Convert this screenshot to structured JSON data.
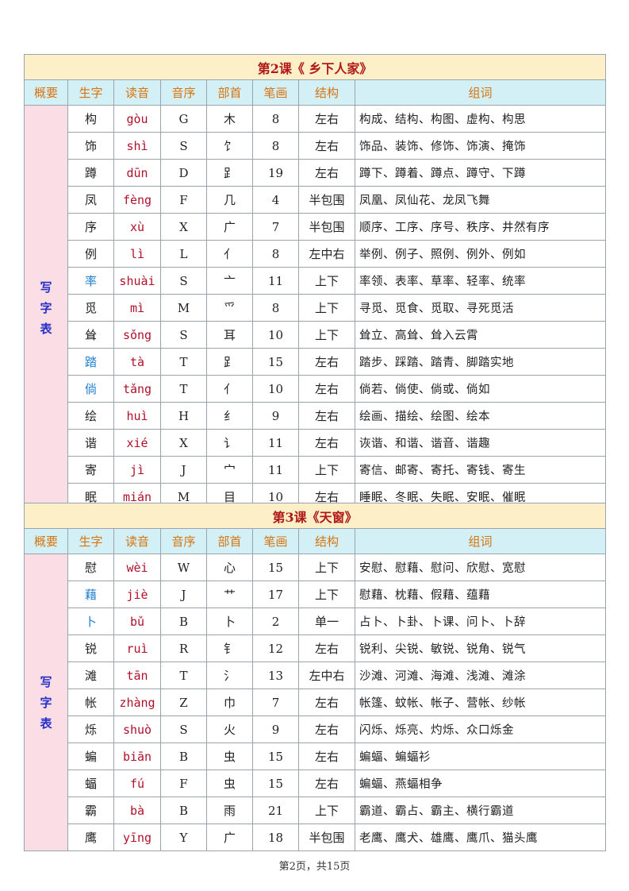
{
  "headers": [
    "概要",
    "生字",
    "读音",
    "音序",
    "部首",
    "笔画",
    "结构",
    "组词"
  ],
  "side_label": "写字表",
  "colors": {
    "title_bg": "#fdf0c8",
    "title_text": "#b01818",
    "header_bg": "#d3f0f6",
    "header_text": "#d8730e",
    "side_bg": "#fbdde6",
    "side_text": "#2630c8",
    "pinyin": "#b0102a",
    "highlight_char": "#1e7fd0"
  },
  "lessons": [
    {
      "title": "第2课《 乡下人家》",
      "rows": [
        {
          "char": "构",
          "pinyin": "gòu",
          "initial": "G",
          "radical": "木",
          "strokes": "8",
          "structure": "左右",
          "words": "构成、结构、构图、虚构、构思"
        },
        {
          "char": "饰",
          "pinyin": "shì",
          "initial": "S",
          "radical": "饣",
          "strokes": "8",
          "structure": "左右",
          "words": "饰品、装饰、修饰、饰演、掩饰"
        },
        {
          "char": "蹲",
          "pinyin": "dūn",
          "initial": "D",
          "radical": "⻊",
          "strokes": "19",
          "structure": "左右",
          "words": "蹲下、蹲着、蹲点、蹲守、下蹲"
        },
        {
          "char": "凤",
          "pinyin": "fèng",
          "initial": "F",
          "radical": "几",
          "strokes": "4",
          "structure": "半包围",
          "words": "凤凰、凤仙花、龙凤飞舞"
        },
        {
          "char": "序",
          "pinyin": "xù",
          "initial": "X",
          "radical": "广",
          "strokes": "7",
          "structure": "半包围",
          "words": "顺序、工序、序号、秩序、井然有序"
        },
        {
          "char": "例",
          "pinyin": "lì",
          "initial": "L",
          "radical": "亻",
          "strokes": "8",
          "structure": "左中右",
          "words": "举例、例子、照例、例外、例如"
        },
        {
          "char": "率",
          "pinyin": "shuài",
          "initial": "S",
          "radical": "亠",
          "strokes": "11",
          "structure": "上下",
          "words": "率领、表率、草率、轻率、统率",
          "highlight": true
        },
        {
          "char": "觅",
          "pinyin": "mì",
          "initial": "M",
          "radical": "爫",
          "strokes": "8",
          "structure": "上下",
          "words": "寻觅、觅食、觅取、寻死觅活"
        },
        {
          "char": "耸",
          "pinyin": "sǒng",
          "initial": "S",
          "radical": "耳",
          "strokes": "10",
          "structure": "上下",
          "words": "耸立、高耸、耸入云霄"
        },
        {
          "char": "踏",
          "pinyin": "tà",
          "initial": "T",
          "radical": "⻊",
          "strokes": "15",
          "structure": "左右",
          "words": "踏步、踩踏、踏青、脚踏实地",
          "highlight": true
        },
        {
          "char": "倘",
          "pinyin": "tǎng",
          "initial": "T",
          "radical": "亻",
          "strokes": "10",
          "structure": "左右",
          "words": "倘若、倘使、倘或、倘如",
          "highlight": true
        },
        {
          "char": "绘",
          "pinyin": "huì",
          "initial": "H",
          "radical": "纟",
          "strokes": "9",
          "structure": "左右",
          "words": "绘画、描绘、绘图、绘本"
        },
        {
          "char": "谐",
          "pinyin": "xié",
          "initial": "X",
          "radical": "讠",
          "strokes": "11",
          "structure": "左右",
          "words": "诙谐、和谐、谐音、谐趣"
        },
        {
          "char": "寄",
          "pinyin": "jì",
          "initial": "J",
          "radical": "宀",
          "strokes": "11",
          "structure": "上下",
          "words": "寄信、邮寄、寄托、寄钱、寄生"
        },
        {
          "char": "眠",
          "pinyin": "mián",
          "initial": "M",
          "radical": "目",
          "strokes": "10",
          "structure": "左右",
          "words": "睡眠、冬眠、失眠、安眠、催眠"
        }
      ]
    },
    {
      "title": "第3课《天窗》",
      "rows": [
        {
          "char": "慰",
          "pinyin": "wèi",
          "initial": "W",
          "radical": "心",
          "strokes": "15",
          "structure": "上下",
          "words": "安慰、慰藉、慰问、欣慰、宽慰"
        },
        {
          "char": "藉",
          "pinyin": "jiè",
          "initial": "J",
          "radical": "艹",
          "strokes": "17",
          "structure": "上下",
          "words": "慰藉、枕藉、假藉、蕴藉",
          "highlight": true
        },
        {
          "char": "卜",
          "pinyin": "bǔ",
          "initial": "B",
          "radical": "卜",
          "strokes": "2",
          "structure": "单一",
          "words": "占卜、卜卦、卜课、问卜、卜辞",
          "highlight": true
        },
        {
          "char": "锐",
          "pinyin": "ruì",
          "initial": "R",
          "radical": "钅",
          "strokes": "12",
          "structure": "左右",
          "words": "锐利、尖锐、敏锐、锐角、锐气"
        },
        {
          "char": "滩",
          "pinyin": "tān",
          "initial": "T",
          "radical": "氵",
          "strokes": "13",
          "structure": "左中右",
          "words": "沙滩、河滩、海滩、浅滩、滩涂"
        },
        {
          "char": "帐",
          "pinyin": "zhàng",
          "initial": "Z",
          "radical": "巾",
          "strokes": "7",
          "structure": "左右",
          "words": "帐篷、蚊帐、帐子、营帐、纱帐"
        },
        {
          "char": "烁",
          "pinyin": "shuò",
          "initial": "S",
          "radical": "火",
          "strokes": "9",
          "structure": "左右",
          "words": "闪烁、烁亮、灼烁、众口烁金"
        },
        {
          "char": "蝙",
          "pinyin": "biān",
          "initial": "B",
          "radical": "虫",
          "strokes": "15",
          "structure": "左右",
          "words": "蝙蝠、蝙蝠衫"
        },
        {
          "char": "蝠",
          "pinyin": "fú",
          "initial": "F",
          "radical": "虫",
          "strokes": "15",
          "structure": "左右",
          "words": "蝙蝠、燕蝠相争"
        },
        {
          "char": "霸",
          "pinyin": "bà",
          "initial": "B",
          "radical": "雨",
          "strokes": "21",
          "structure": "上下",
          "words": "霸道、霸占、霸主、横行霸道"
        },
        {
          "char": "鹰",
          "pinyin": "yīng",
          "initial": "Y",
          "radical": "广",
          "strokes": "18",
          "structure": "半包围",
          "words": "老鹰、鹰犬、雄鹰、鹰爪、猫头鹰"
        }
      ]
    }
  ],
  "footer": "第2页，共15页"
}
